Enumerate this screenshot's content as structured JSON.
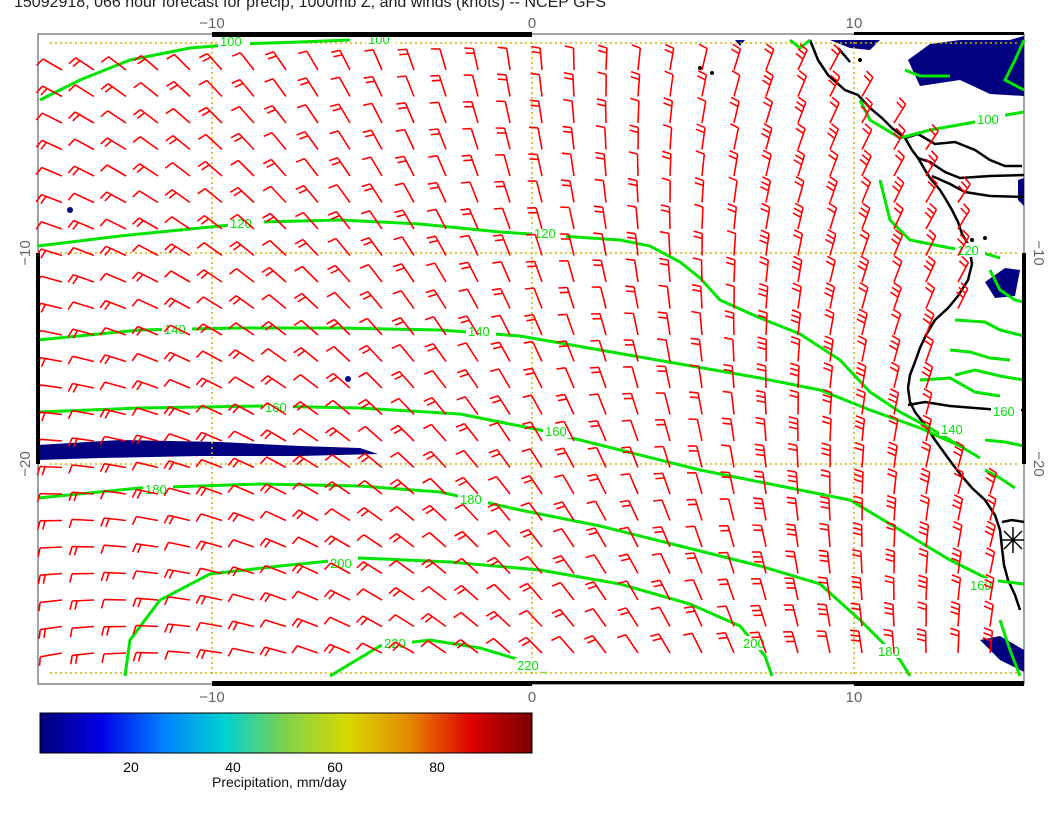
{
  "title": "15092918, 066 hour forecast for precip, 1000mb Z, and winds (knots) -- NCEP GFS",
  "axes": {
    "x_ticks": [
      "−10",
      "0",
      "10"
    ],
    "y_ticks": [
      "−10",
      "−20"
    ]
  },
  "contours": {
    "color": "#00e400",
    "labels": [
      "100",
      "100",
      "120",
      "120",
      "140",
      "140",
      "160",
      "160",
      "180",
      "180",
      "200",
      "200",
      "220",
      "220",
      "140",
      "160",
      "180",
      "160",
      "100",
      "120"
    ]
  },
  "colorbar": {
    "label": "Precipitation, mm/day",
    "ticks": [
      "20",
      "40",
      "60",
      "80"
    ],
    "colors": [
      "#00007a",
      "#0000e6",
      "#0080ff",
      "#00d2d2",
      "#7fd24b",
      "#d8d800",
      "#e58a00",
      "#e00000",
      "#7a0000"
    ]
  },
  "colors": {
    "wind_barbs": "#ff0000",
    "precip": "#000080",
    "coastline": "#000000",
    "gridlines": "#d4b400"
  }
}
